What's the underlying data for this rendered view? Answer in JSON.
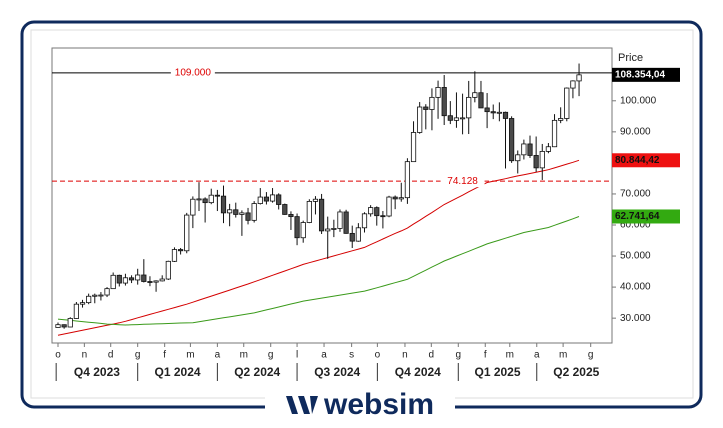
{
  "chart_data": {
    "type": "candlestick",
    "y_label": "Price",
    "ylim": [
      22000,
      117000
    ],
    "yticks": [
      {
        "value": 30000,
        "label": "30.000"
      },
      {
        "value": 40000,
        "label": "40.000"
      },
      {
        "value": 50000,
        "label": "50.000"
      },
      {
        "value": 60000,
        "label": "60.000"
      },
      {
        "value": 70000,
        "label": "70.000"
      },
      {
        "value": 80000,
        "label": "80.000"
      },
      {
        "value": 90000,
        "label": "90.000"
      },
      {
        "value": 100000,
        "label": "100.000"
      }
    ],
    "up_color": "#ffffff",
    "down_color": "#4a4a4a",
    "open": [
      27000,
      27900,
      27150,
      29900,
      34500,
      35000,
      37050,
      37400,
      37450,
      39500,
      43800,
      41300,
      43000,
      42300,
      43900,
      41800,
      41600,
      42000,
      42600,
      48300,
      52100,
      51700,
      63200,
      68300,
      68400,
      67200,
      69600,
      69300,
      63900,
      64900,
      63400,
      63900,
      61500,
      66900,
      69000,
      67700,
      69700,
      66600,
      63400,
      62700,
      55900,
      60800,
      67600,
      68300,
      58100,
      58700,
      58900,
      64200,
      57300,
      54800,
      59100,
      63600,
      65600,
      63000,
      62900,
      69000,
      68400,
      68800,
      80400,
      89800,
      98000,
      97200,
      101100,
      104300,
      95200,
      93700,
      94500,
      94500,
      101100,
      102600,
      97700,
      96500,
      96100,
      96300,
      94300,
      80700,
      82600,
      86100,
      82400,
      78400,
      83700,
      85200,
      93700,
      94300,
      104100,
      106400
    ],
    "high": [
      28600,
      28000,
      30300,
      35200,
      35900,
      37900,
      37900,
      38400,
      40000,
      44700,
      44000,
      44300,
      43800,
      45900,
      49000,
      43500,
      42200,
      43800,
      48500,
      52800,
      52600,
      63900,
      69200,
      73800,
      68900,
      71700,
      71300,
      72700,
      66800,
      67200,
      64700,
      65500,
      67700,
      71900,
      70600,
      71900,
      70200,
      66900,
      64400,
      63700,
      61400,
      68300,
      69300,
      70000,
      62700,
      61700,
      65000,
      64900,
      59800,
      60600,
      64100,
      66400,
      66000,
      64500,
      69400,
      69500,
      73600,
      81500,
      93400,
      99600,
      98900,
      104000,
      106500,
      108300,
      99900,
      102700,
      102300,
      106400,
      109500,
      106400,
      102500,
      98800,
      99500,
      96500,
      95000,
      84000,
      87500,
      88800,
      88500,
      86100,
      86400,
      95700,
      97900,
      104300,
      106600,
      112000
    ],
    "low": [
      26900,
      26600,
      27100,
      29800,
      33400,
      34500,
      34800,
      35700,
      36800,
      39500,
      40200,
      40500,
      41300,
      40800,
      41500,
      40300,
      38500,
      41800,
      42300,
      48100,
      50500,
      50900,
      59000,
      64500,
      60800,
      66700,
      64500,
      60600,
      59600,
      62400,
      56500,
      60200,
      60800,
      66600,
      66600,
      67200,
      65000,
      63300,
      58400,
      53500,
      54300,
      60600,
      63400,
      57100,
      49100,
      56100,
      57800,
      57200,
      52600,
      54600,
      57600,
      62700,
      59800,
      58900,
      62500,
      65100,
      67500,
      66800,
      80300,
      89400,
      90800,
      90500,
      94200,
      92200,
      92500,
      91300,
      89200,
      89300,
      99500,
      97700,
      91200,
      94100,
      93400,
      78200,
      80000,
      76600,
      81100,
      81600,
      77100,
      74500,
      83100,
      85100,
      92800,
      93400,
      100800,
      101500
    ],
    "close": [
      27900,
      27150,
      29900,
      34500,
      35000,
      37050,
      37400,
      37450,
      39500,
      43800,
      41300,
      43000,
      42300,
      43900,
      41800,
      41600,
      42000,
      42600,
      48300,
      52100,
      51700,
      63200,
      68300,
      68400,
      67200,
      69600,
      69300,
      63900,
      64900,
      63400,
      63900,
      61500,
      66900,
      69000,
      67700,
      69700,
      66600,
      63400,
      62700,
      55900,
      60800,
      67600,
      68300,
      58100,
      58700,
      58900,
      64200,
      57300,
      54800,
      59100,
      63600,
      65600,
      63000,
      62900,
      69000,
      68400,
      68800,
      80400,
      89800,
      98000,
      97200,
      101100,
      104300,
      95200,
      93700,
      94500,
      94500,
      101100,
      102600,
      97700,
      96500,
      96100,
      96300,
      94300,
      80700,
      82600,
      86100,
      82400,
      78400,
      83700,
      85200,
      93700,
      94300,
      104100,
      106400,
      108354.04
    ],
    "last_close_label": "108.354,04",
    "series": [
      {
        "color": "#d40000",
        "last_value_label": "80.844,42",
        "label_color": "#ee1111",
        "values": [
          24500,
          24900,
          25300,
          25700,
          26100,
          26500,
          26900,
          27300,
          27700,
          28100,
          28500,
          29000,
          29550,
          30100,
          30650,
          31200,
          31750,
          32300,
          32850,
          33400,
          33950,
          34500,
          35150,
          35800,
          36450,
          37100,
          37750,
          38400,
          39050,
          39700,
          40350,
          41000,
          41700,
          42400,
          43100,
          43800,
          44500,
          45200,
          45900,
          46600,
          47300,
          47850,
          48400,
          48950,
          49500,
          50050,
          50600,
          51150,
          51700,
          52250,
          52800,
          53700,
          54600,
          55500,
          56400,
          57300,
          58100,
          59000,
          60300,
          61500,
          62800,
          64000,
          65300,
          66600,
          67600,
          68600,
          69600,
          70700,
          71700,
          72700,
          73700,
          74100,
          74500,
          74900,
          75400,
          75800,
          76200,
          76600,
          77000,
          77400,
          77800,
          78400,
          79000,
          79600,
          80200,
          80844.42
        ]
      },
      {
        "color": "#3a9a1a",
        "last_value_label": "62.741,64",
        "label_color": "#33aa11",
        "values": [
          29700,
          29500,
          29300,
          29100,
          28900,
          28700,
          28500,
          28300,
          28100,
          28000,
          27900,
          27800,
          27870,
          27940,
          28010,
          28080,
          28150,
          28220,
          28290,
          28360,
          28430,
          28470,
          28500,
          28820,
          29140,
          29460,
          29780,
          30100,
          30420,
          30740,
          31060,
          31380,
          31700,
          32170,
          32650,
          33120,
          33600,
          34070,
          34550,
          35020,
          35500,
          35820,
          36140,
          36460,
          36780,
          37100,
          37420,
          37740,
          38060,
          38380,
          38700,
          39240,
          39790,
          40330,
          40870,
          41410,
          41960,
          42500,
          43480,
          44470,
          45450,
          46430,
          47420,
          48400,
          49190,
          49970,
          50760,
          51540,
          52330,
          53110,
          53900,
          54520,
          55130,
          55750,
          56370,
          56980,
          57600,
          58000,
          58400,
          58800,
          59200,
          59900,
          60600,
          61300,
          62000,
          62741.64
        ]
      }
    ],
    "levels": [
      {
        "value": 109000,
        "label": "109.000",
        "color": "#000000",
        "label_color": "#dd0000",
        "dashed": false,
        "label_at": 22
      },
      {
        "value": 74128,
        "label": "74.128",
        "color": "#dd0000",
        "label_color": "#dd0000",
        "dashed": true,
        "label_at": 66
      }
    ],
    "month_ticks": [
      {
        "value": 0,
        "label": "o"
      },
      {
        "value": 4.3,
        "label": "n"
      },
      {
        "value": 8.6,
        "label": "d"
      },
      {
        "value": 13,
        "label": "g"
      },
      {
        "value": 17.4,
        "label": "f"
      },
      {
        "value": 21.6,
        "label": "m"
      },
      {
        "value": 26,
        "label": "a"
      },
      {
        "value": 30.3,
        "label": "m"
      },
      {
        "value": 34.7,
        "label": "g"
      },
      {
        "value": 39,
        "label": "l"
      },
      {
        "value": 43.4,
        "label": "a"
      },
      {
        "value": 47.9,
        "label": "s"
      },
      {
        "value": 52.1,
        "label": "o"
      },
      {
        "value": 56.6,
        "label": "n"
      },
      {
        "value": 60.9,
        "label": "d"
      },
      {
        "value": 65.3,
        "label": "g"
      },
      {
        "value": 69.7,
        "label": "f"
      },
      {
        "value": 73.7,
        "label": "m"
      },
      {
        "value": 78.1,
        "label": "a"
      },
      {
        "value": 82.4,
        "label": "m"
      },
      {
        "value": 86.9,
        "label": "g"
      }
    ],
    "quarters": [
      {
        "label": "Q4 2023",
        "start": -0.3,
        "end": 13
      },
      {
        "label": "Q1 2024",
        "start": 13,
        "end": 26
      },
      {
        "label": "Q2 2024",
        "start": 26,
        "end": 39
      },
      {
        "label": "Q3 2024",
        "start": 39,
        "end": 52.1
      },
      {
        "label": "Q4 2024",
        "start": 52.1,
        "end": 65.3
      },
      {
        "label": "Q1 2025",
        "start": 65.3,
        "end": 78.1
      },
      {
        "label": "Q2 2025",
        "start": 78.1,
        "end": 91
      }
    ]
  },
  "brand": "websim"
}
